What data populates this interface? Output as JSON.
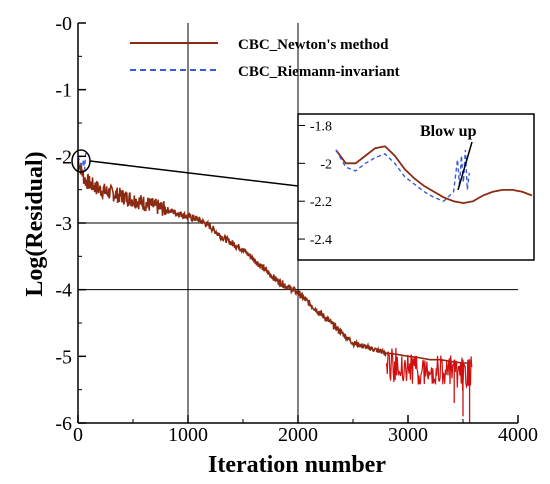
{
  "chart_data": {
    "type": "line",
    "xlabel": "Iteration number",
    "ylabel": "Log(Residual)",
    "xlim": [
      0,
      4000
    ],
    "ylim": [
      -6,
      0
    ],
    "xticks": [
      "0",
      "1000",
      "2000",
      "3000",
      "4000"
    ],
    "yticks": [
      "-6",
      "-5",
      "-4",
      "-3",
      "-2",
      "-1",
      "-0"
    ],
    "grid": "major gridlines at x = 1000, 2000 and y = -3, -4",
    "legend_position": "top-center",
    "series": [
      {
        "name": "CBC_Newton's method",
        "color": "#8b2a12",
        "style": "solid",
        "x": [
          0,
          30,
          60,
          100,
          150,
          200,
          300,
          400,
          500,
          600,
          700,
          800,
          900,
          1000,
          1100,
          1200,
          1300,
          1400,
          1500,
          1600,
          1700,
          1800,
          1900,
          2000,
          2100,
          2200,
          2300,
          2400,
          2500,
          2600,
          2700,
          2800,
          2900,
          3000,
          3100,
          3200,
          3300,
          3400,
          3500,
          3580
        ],
        "y": [
          -2.05,
          -2.2,
          -2.35,
          -2.4,
          -2.45,
          -2.5,
          -2.55,
          -2.6,
          -2.65,
          -2.7,
          -2.75,
          -2.8,
          -2.85,
          -2.9,
          -2.95,
          -3.05,
          -3.2,
          -3.3,
          -3.4,
          -3.55,
          -3.7,
          -3.85,
          -3.95,
          -4.05,
          -4.2,
          -4.35,
          -4.5,
          -4.65,
          -4.8,
          -4.85,
          -4.9,
          -4.95,
          -4.97,
          -5.0,
          -5.02,
          -5.05,
          -5.05,
          -5.08,
          -5.1,
          -5.1
        ]
      },
      {
        "name": "CBC_Riemann-invariant",
        "color": "#3b5bd6",
        "style": "dashed",
        "x": [
          0,
          10,
          20,
          30,
          40,
          50,
          60,
          70
        ],
        "y": [
          -2.0,
          -2.05,
          -2.1,
          -2.13,
          -2.16,
          -2.05,
          -2.2,
          -1.95
        ]
      }
    ],
    "inset": {
      "yticks": [
        "-1.8",
        "-2",
        "-2.2",
        "-2.4"
      ],
      "ylim": [
        -2.5,
        -1.75
      ],
      "annotation": "Blow up",
      "series": [
        {
          "name": "CBC_Newton's method",
          "x": [
            0,
            5,
            10,
            15,
            20,
            25,
            30,
            35,
            40,
            45,
            50,
            55,
            60,
            65,
            70,
            75,
            80,
            85,
            90,
            95,
            100
          ],
          "y": [
            -1.93,
            -2.0,
            -2.0,
            -1.96,
            -1.92,
            -1.91,
            -1.96,
            -2.03,
            -2.08,
            -2.12,
            -2.15,
            -2.18,
            -2.2,
            -2.21,
            -2.2,
            -2.17,
            -2.15,
            -2.14,
            -2.14,
            -2.15,
            -2.17
          ]
        },
        {
          "name": "CBC_Riemann-invariant",
          "x": [
            0,
            5,
            10,
            15,
            20,
            25,
            30,
            35,
            40,
            45,
            50,
            55,
            60,
            62,
            63,
            64,
            65,
            66,
            67,
            68
          ],
          "y": [
            -1.93,
            -2.02,
            -2.04,
            -2.0,
            -1.97,
            -1.95,
            -2.0,
            -2.07,
            -2.11,
            -2.15,
            -2.18,
            -2.2,
            -2.15,
            -1.98,
            -2.12,
            -1.96,
            -2.1,
            -1.93,
            -2.14,
            -2.05
          ]
        }
      ]
    }
  }
}
